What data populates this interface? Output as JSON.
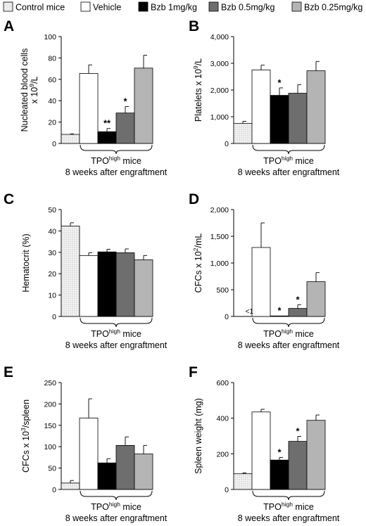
{
  "legend": [
    {
      "key": "control",
      "label": "Control mice",
      "fill": "#f2f2f2",
      "pattern": "dots"
    },
    {
      "key": "vehicle",
      "label": "Vehicle",
      "fill": "#ffffff"
    },
    {
      "key": "bzb1",
      "label": "Bzb 1mg/kg",
      "fill": "#000000"
    },
    {
      "key": "bzb05",
      "label": "Bzb 0.5mg/kg",
      "fill": "#6e6e6e"
    },
    {
      "key": "bzb025",
      "label": "Bzb 0.25mg/kg",
      "fill": "#b4b4b4"
    }
  ],
  "group_label": {
    "line1_pre": "TPO",
    "line1_sup": "high",
    "line1_post": " mice",
    "line2": "8 weeks after engraftment"
  },
  "chart_data": [
    {
      "panel": "A",
      "type": "bar",
      "ylabel_pre": "Nucleated blood cells",
      "ylabel_line2_pre": "x 10",
      "ylabel_sup": "9",
      "ylabel_post": "/L",
      "categories": [
        "Control mice",
        "Vehicle",
        "Bzb 1mg/kg",
        "Bzb 0.5mg/kg",
        "Bzb 0.25mg/kg"
      ],
      "values": [
        8.5,
        65.5,
        11,
        28.5,
        70.5
      ],
      "errors": [
        0.5,
        8,
        3,
        6,
        12
      ],
      "annotations": [
        "",
        "",
        "**",
        "*",
        ""
      ],
      "ylim": [
        0,
        100
      ],
      "yticks": [
        "0",
        "20",
        "40",
        "60",
        "80",
        "100"
      ]
    },
    {
      "panel": "B",
      "type": "bar",
      "ylabel_pre": "Platelets x 10",
      "ylabel_sup": "9",
      "ylabel_post": "/L",
      "categories": [
        "Control mice",
        "Vehicle",
        "Bzb 1mg/kg",
        "Bzb 0.5mg/kg",
        "Bzb 0.25mg/kg"
      ],
      "values": [
        750,
        2750,
        1800,
        1880,
        2720
      ],
      "errors": [
        80,
        180,
        280,
        320,
        350
      ],
      "annotations": [
        "",
        "",
        "*",
        "",
        ""
      ],
      "ylim": [
        0,
        4000
      ],
      "yticks": [
        "0",
        "1,000",
        "2,000",
        "3,000",
        "4,000"
      ]
    },
    {
      "panel": "C",
      "type": "bar",
      "ylabel_pre": "Hematocrit (%)",
      "categories": [
        "Control mice",
        "Vehicle",
        "Bzb 1mg/kg",
        "Bzb 0.5mg/kg",
        "Bzb 0.25mg/kg"
      ],
      "values": [
        42.3,
        28.5,
        30.2,
        29.8,
        26.5
      ],
      "errors": [
        1.5,
        1.3,
        1.2,
        1.8,
        2.0
      ],
      "annotations": [
        "",
        "",
        "",
        "",
        ""
      ],
      "ylim": [
        0,
        50
      ],
      "yticks": [
        "0",
        "10",
        "20",
        "30",
        "40",
        "50"
      ]
    },
    {
      "panel": "D",
      "type": "bar",
      "ylabel_pre": "CFCs x 10",
      "ylabel_sup": "2",
      "ylabel_post": "/mL",
      "categories": [
        "Control mice",
        "Vehicle",
        "Bzb 1mg/kg",
        "Bzb 0.5mg/kg",
        "Bzb 0.25mg/kg"
      ],
      "values": [
        0,
        1290,
        10,
        150,
        650
      ],
      "errors": [
        0,
        460,
        0,
        70,
        170
      ],
      "annotations": [
        "",
        "",
        "*",
        "*",
        ""
      ],
      "note": "<1",
      "ylim": [
        0,
        2000
      ],
      "yticks": [
        "0",
        "500",
        "1,000",
        "1,500",
        "2,000"
      ]
    },
    {
      "panel": "E",
      "type": "bar",
      "ylabel_pre": "CFCs x 10",
      "ylabel_sup": "3",
      "ylabel_post": "/spleen",
      "categories": [
        "Control mice",
        "Vehicle",
        "Bzb 1mg/kg",
        "Bzb 0.5mg/kg",
        "Bzb 0.25mg/kg"
      ],
      "values": [
        15,
        167,
        62,
        103,
        83
      ],
      "errors": [
        6,
        45,
        10,
        20,
        20
      ],
      "annotations": [
        "",
        "",
        "",
        "",
        ""
      ],
      "ylim": [
        0,
        250
      ],
      "yticks": [
        "0",
        "50",
        "100",
        "150",
        "200",
        "250"
      ]
    },
    {
      "panel": "F",
      "type": "bar",
      "ylabel_pre": "Spleen weight (mg)",
      "categories": [
        "Control mice",
        "Vehicle",
        "Bzb 1mg/kg",
        "Bzb 0.5mg/kg",
        "Bzb 0.25mg/kg"
      ],
      "values": [
        88,
        435,
        165,
        270,
        388
      ],
      "errors": [
        5,
        15,
        15,
        28,
        30
      ],
      "annotations": [
        "",
        "",
        "*",
        "*",
        ""
      ],
      "ylim": [
        0,
        600
      ],
      "yticks": [
        "0",
        "200",
        "400",
        "600"
      ]
    }
  ]
}
